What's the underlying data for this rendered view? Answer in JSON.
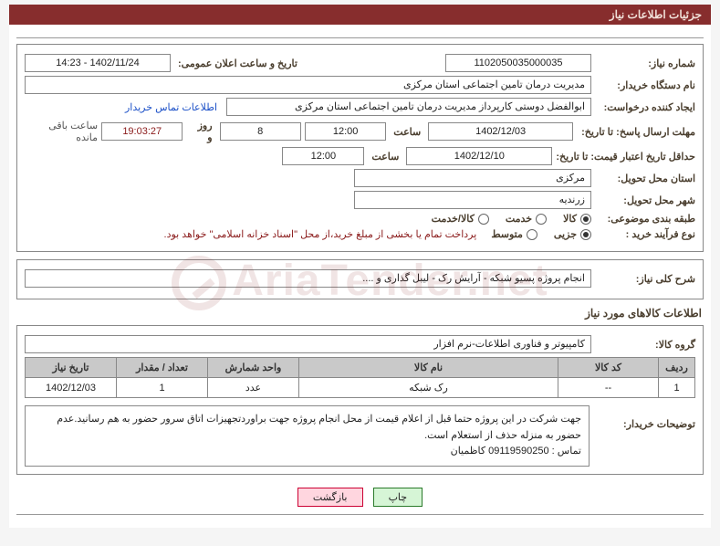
{
  "header": {
    "title": "جزئیات اطلاعات نیاز"
  },
  "fields": {
    "need_no_label": "شماره نیاز:",
    "need_no": "1102050035000035",
    "announce_label": "تاریخ و ساعت اعلان عمومی:",
    "announce_value": "1402/11/24 - 14:23",
    "buyer_label": "نام دستگاه خریدار:",
    "buyer_value": "مدیریت درمان تامین اجتماعی استان مرکزی",
    "requester_label": "ایجاد کننده درخواست:",
    "requester_value": "ابوالفضل دوستی کارپرداز مدیریت درمان تامین اجتماعی استان مرکزی",
    "contact_link": "اطلاعات تماس خریدار",
    "deadline_label": "مهلت ارسال پاسخ: تا تاریخ:",
    "deadline_date": "1402/12/03",
    "time_label": "ساعت",
    "deadline_time": "12:00",
    "days_value": "8",
    "days_after": "روز و",
    "countdown": "19:03:27",
    "remaining": "ساعت باقی مانده",
    "validity_label": "حداقل تاریخ اعتبار قیمت: تا تاریخ:",
    "validity_date": "1402/12/10",
    "validity_time": "12:00",
    "province_label": "استان محل تحویل:",
    "province_value": "مرکزی",
    "city_label": "شهر محل تحویل:",
    "city_value": "زرندیه",
    "category_label": "طبقه بندی موضوعی:",
    "purchase_type_label": "نوع فرآیند خرید :",
    "payment_note": "پرداخت تمام یا بخشی از مبلغ خرید،از محل \"اسناد خزانه اسلامی\" خواهد بود."
  },
  "category_options": [
    {
      "label": "کالا",
      "selected": true
    },
    {
      "label": "خدمت",
      "selected": false
    },
    {
      "label": "کالا/خدمت",
      "selected": false
    }
  ],
  "purchase_options": [
    {
      "label": "جزیی",
      "selected": true
    },
    {
      "label": "متوسط",
      "selected": false
    }
  ],
  "summary": {
    "label": "شرح کلی نیاز:",
    "value": "انجام پروژه پسیو شبکه - آرایش رک - لیبل گذاری و ...."
  },
  "items_section_title": "اطلاعات کالاهای مورد نیاز",
  "goods_group": {
    "label": "گروه کالا:",
    "value": "کامپیوتر و فناوری اطلاعات-نرم افزار"
  },
  "table": {
    "columns": [
      "ردیف",
      "کد کالا",
      "نام کالا",
      "واحد شمارش",
      "تعداد / مقدار",
      "تاریخ نیاز"
    ],
    "col_widths": [
      "40px",
      "110px",
      "auto",
      "100px",
      "100px",
      "100px"
    ],
    "rows": [
      [
        "1",
        "--",
        "رک شبکه",
        "عدد",
        "1",
        "1402/12/03"
      ]
    ]
  },
  "buyer_note": {
    "label": "توضیحات خریدار:",
    "text": "جهت شرکت در این پروژه حتما قبل از اعلام قیمت از محل انجام پروژه جهت براوردتجهیزات اتاق سرور حضور به هم رسانید.عدم حضور به منزله حذف از استعلام است.\nتماس : 09119590250 کاظمیان"
  },
  "buttons": {
    "print": "چاپ",
    "back": "بازگشت"
  },
  "colors": {
    "header_bg": "#872d2d",
    "header_text": "#f0e0d8",
    "th_bg": "#c9c9c9",
    "link": "#1a4fc7",
    "warn": "#8a1a1a"
  }
}
